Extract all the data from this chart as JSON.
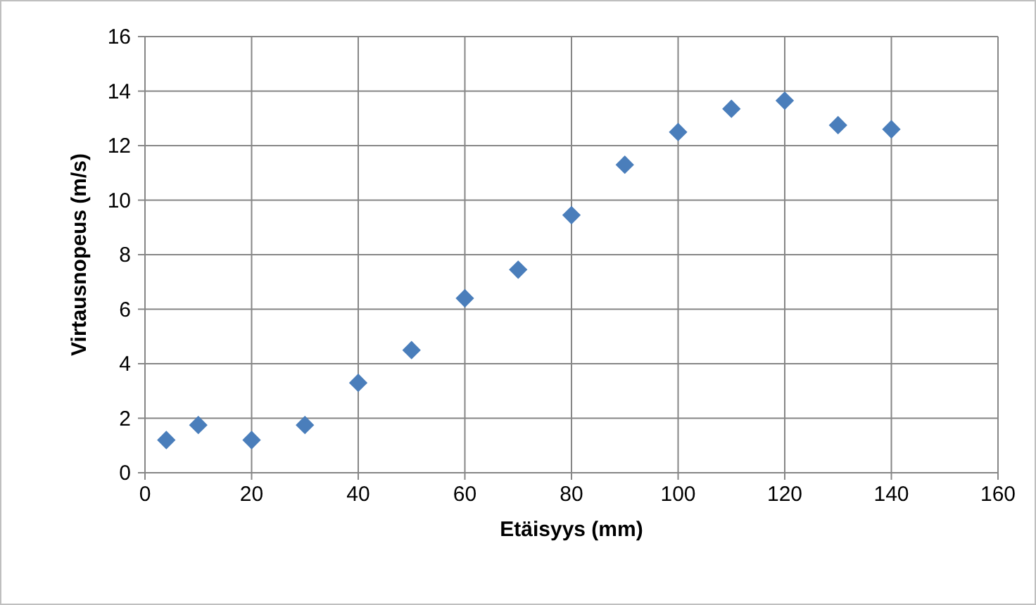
{
  "chart_data": {
    "type": "scatter",
    "xlabel": "Etäisyys (mm)",
    "ylabel": "Virtausnopeus (m/s)",
    "x": [
      4,
      10,
      20,
      30,
      40,
      50,
      60,
      70,
      80,
      90,
      100,
      110,
      120,
      130,
      140
    ],
    "series": [
      {
        "color": "#4a7ebb",
        "values": [
          1.2,
          1.75,
          1.2,
          1.75,
          3.3,
          4.5,
          6.4,
          7.45,
          9.45,
          11.3,
          12.5,
          13.35,
          13.65,
          12.75,
          12.6
        ]
      }
    ],
    "xlim": [
      0,
      160
    ],
    "xticks": [
      0,
      20,
      40,
      60,
      80,
      100,
      120,
      140,
      160
    ],
    "ylim": [
      0,
      16
    ],
    "yticks": [
      0,
      2,
      4,
      6,
      8,
      10,
      12,
      14,
      16
    ],
    "grid": true,
    "marker": "diamond"
  }
}
